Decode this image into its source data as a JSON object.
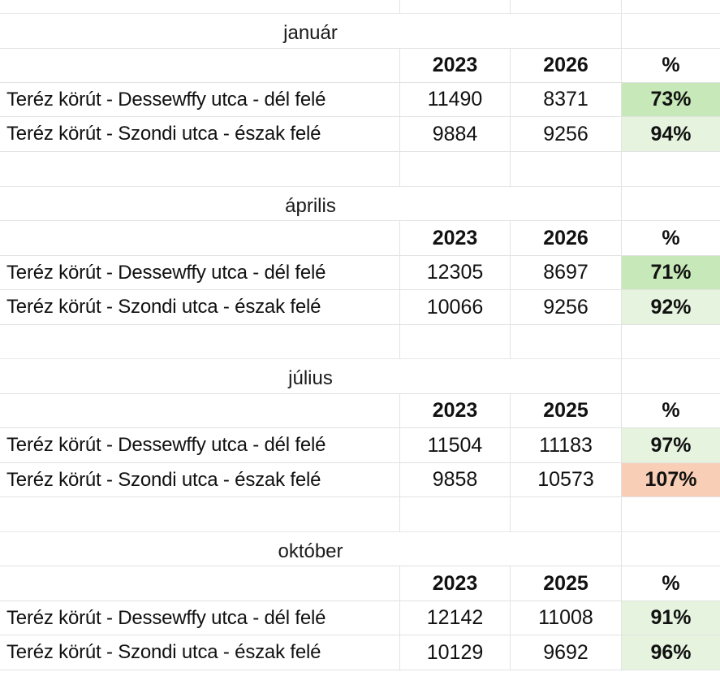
{
  "sections": [
    {
      "month": "január",
      "header": {
        "y1": "2023",
        "y2": "2026",
        "pct": "%"
      },
      "rows": [
        {
          "label": "Teréz körút - Dessewffy utca - dél felé",
          "v1": "11490",
          "v2": "8371",
          "pct": "73%",
          "pct_value": 73,
          "fill": "#c7e8b8"
        },
        {
          "label": "Teréz körút - Szondi utca - észak felé",
          "v1": "9884",
          "v2": "9256",
          "pct": "94%",
          "pct_value": 94,
          "fill": "#e6f4df"
        }
      ]
    },
    {
      "month": "április",
      "header": {
        "y1": "2023",
        "y2": "2026",
        "pct": "%"
      },
      "rows": [
        {
          "label": "Teréz körút - Dessewffy utca - dél felé",
          "v1": "12305",
          "v2": "8697",
          "pct": "71%",
          "pct_value": 71,
          "fill": "#c7e8b8"
        },
        {
          "label": "Teréz körút - Szondi utca - észak felé",
          "v1": "10066",
          "v2": "9256",
          "pct": "92%",
          "pct_value": 92,
          "fill": "#e6f4df"
        }
      ]
    },
    {
      "month": "július",
      "header": {
        "y1": "2023",
        "y2": "2025",
        "pct": "%"
      },
      "rows": [
        {
          "label": "Teréz körút - Dessewffy utca - dél felé",
          "v1": "11504",
          "v2": "11183",
          "pct": "97%",
          "pct_value": 97,
          "fill": "#e6f4df"
        },
        {
          "label": "Teréz körút - Szondi utca - észak felé",
          "v1": "9858",
          "v2": "10573",
          "pct": "107%",
          "pct_value": 107,
          "fill": "#f8cfb6"
        }
      ]
    },
    {
      "month": "október",
      "header": {
        "y1": "2023",
        "y2": "2025",
        "pct": "%"
      },
      "rows": [
        {
          "label": "Teréz körút - Dessewffy utca - dél felé",
          "v1": "12142",
          "v2": "11008",
          "pct": "91%",
          "pct_value": 91,
          "fill": "#e6f4df"
        },
        {
          "label": "Teréz körút - Szondi utca - észak felé",
          "v1": "10129",
          "v2": "9692",
          "pct": "96%",
          "pct_value": 96,
          "fill": "#e6f4df"
        }
      ]
    }
  ]
}
